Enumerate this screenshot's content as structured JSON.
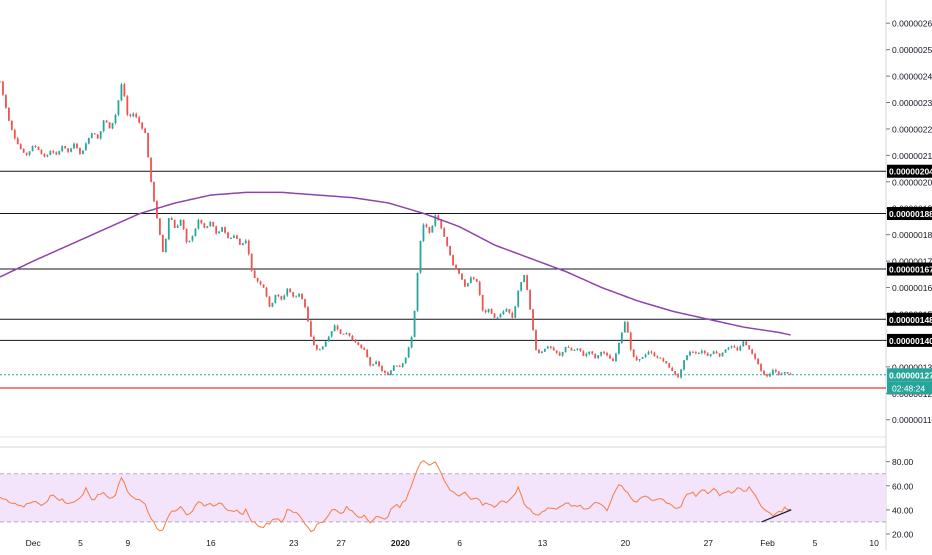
{
  "colors": {
    "up": "#26a69a",
    "down": "#ef5350",
    "ma": "#8e44ad",
    "rsi": "#f57c44",
    "rsi_band": "#f3e3fb",
    "level_line": "#131722",
    "support_line": "#e53935",
    "current_line": "#26a69a",
    "axis_text": "#131722",
    "label_bg": "#000000",
    "label_text": "#ffffff",
    "support_label_bg": "#e53935",
    "current_label_bg": "#26a69a",
    "trendline": "#131722"
  },
  "chart_data": [
    {
      "type": "candlestick",
      "pane": "price",
      "y_unit": "price",
      "ylim": [
        1.08e-06,
        2.65e-06
      ],
      "y_ticks": [
        "0.00000110",
        "0.00000120",
        "0.00000130",
        "0.00000140",
        "0.00000150",
        "0.00000160",
        "0.00000170",
        "0.00000180",
        "0.00000190",
        "0.00000200",
        "0.00000210",
        "0.00000220",
        "0.00000230",
        "0.00000240",
        "0.00000250",
        "0.00000260"
      ],
      "x_ticks": [
        {
          "label": "Dec",
          "day": 0
        },
        {
          "label": "5",
          "day": 4
        },
        {
          "label": "9",
          "day": 8
        },
        {
          "label": "16",
          "day": 15
        },
        {
          "label": "23",
          "day": 22
        },
        {
          "label": "27",
          "day": 26
        },
        {
          "label": "2020",
          "day": 31
        },
        {
          "label": "6",
          "day": 36
        },
        {
          "label": "13",
          "day": 43
        },
        {
          "label": "20",
          "day": 50
        },
        {
          "label": "27",
          "day": 57
        },
        {
          "label": "Feb",
          "day": 62
        },
        {
          "label": "5",
          "day": 66
        },
        {
          "label": "10",
          "day": 71
        }
      ],
      "day_range": [
        -2.8,
        72
      ],
      "close_anchors": [
        [
          -2.8,
          2.38e-06
        ],
        [
          -2.5,
          2.32e-06
        ],
        [
          -2.0,
          2.22e-06
        ],
        [
          -1.5,
          2.16e-06
        ],
        [
          -1.0,
          2.12e-06
        ],
        [
          -0.5,
          2.1e-06
        ],
        [
          0,
          2.14e-06
        ],
        [
          0.5,
          2.12e-06
        ],
        [
          1.0,
          2.09e-06
        ],
        [
          1.5,
          2.12e-06
        ],
        [
          2.0,
          2.1e-06
        ],
        [
          2.5,
          2.14e-06
        ],
        [
          3.0,
          2.11e-06
        ],
        [
          3.5,
          2.15e-06
        ],
        [
          4.0,
          2.1e-06
        ],
        [
          4.5,
          2.15e-06
        ],
        [
          5.0,
          2.19e-06
        ],
        [
          5.5,
          2.16e-06
        ],
        [
          6.0,
          2.24e-06
        ],
        [
          6.5,
          2.2e-06
        ],
        [
          7.0,
          2.26e-06
        ],
        [
          7.5,
          2.38e-06
        ],
        [
          8.0,
          2.24e-06
        ],
        [
          8.5,
          2.26e-06
        ],
        [
          9.0,
          2.22e-06
        ],
        [
          9.5,
          2.18e-06
        ],
        [
          9.8,
          2.05e-06
        ],
        [
          10.0,
          1.98e-06
        ],
        [
          10.5,
          1.85e-06
        ],
        [
          11.0,
          1.72e-06
        ],
        [
          11.5,
          1.88e-06
        ],
        [
          12.0,
          1.82e-06
        ],
        [
          12.5,
          1.86e-06
        ],
        [
          13.0,
          1.76e-06
        ],
        [
          13.5,
          1.8e-06
        ],
        [
          14.0,
          1.86e-06
        ],
        [
          14.5,
          1.82e-06
        ],
        [
          15.0,
          1.85e-06
        ],
        [
          15.5,
          1.8e-06
        ],
        [
          16.0,
          1.83e-06
        ],
        [
          16.5,
          1.78e-06
        ],
        [
          17.0,
          1.8e-06
        ],
        [
          17.5,
          1.76e-06
        ],
        [
          18.0,
          1.78e-06
        ],
        [
          18.5,
          1.65e-06
        ],
        [
          19.0,
          1.62e-06
        ],
        [
          19.5,
          1.6e-06
        ],
        [
          20.0,
          1.52e-06
        ],
        [
          20.5,
          1.58e-06
        ],
        [
          21.0,
          1.55e-06
        ],
        [
          21.5,
          1.6e-06
        ],
        [
          22.0,
          1.56e-06
        ],
        [
          22.5,
          1.58e-06
        ],
        [
          23.0,
          1.52e-06
        ],
        [
          23.5,
          1.4e-06
        ],
        [
          24.0,
          1.36e-06
        ],
        [
          24.5,
          1.38e-06
        ],
        [
          25.0,
          1.42e-06
        ],
        [
          25.5,
          1.46e-06
        ],
        [
          26.0,
          1.42e-06
        ],
        [
          26.5,
          1.43e-06
        ],
        [
          27.0,
          1.4e-06
        ],
        [
          27.5,
          1.38e-06
        ],
        [
          28.0,
          1.36e-06
        ],
        [
          28.5,
          1.3e-06
        ],
        [
          29.0,
          1.32e-06
        ],
        [
          29.5,
          1.28e-06
        ],
        [
          30.0,
          1.27e-06
        ],
        [
          30.5,
          1.31e-06
        ],
        [
          31.0,
          1.3e-06
        ],
        [
          31.5,
          1.34e-06
        ],
        [
          32.0,
          1.42e-06
        ],
        [
          32.3,
          1.56e-06
        ],
        [
          32.6,
          1.75e-06
        ],
        [
          33.0,
          1.85e-06
        ],
        [
          33.5,
          1.8e-06
        ],
        [
          34.0,
          1.88e-06
        ],
        [
          34.5,
          1.82e-06
        ],
        [
          35.0,
          1.75e-06
        ],
        [
          35.5,
          1.68e-06
        ],
        [
          36.0,
          1.65e-06
        ],
        [
          36.5,
          1.6e-06
        ],
        [
          37.0,
          1.64e-06
        ],
        [
          37.5,
          1.62e-06
        ],
        [
          38.0,
          1.5e-06
        ],
        [
          38.5,
          1.52e-06
        ],
        [
          39.0,
          1.48e-06
        ],
        [
          39.5,
          1.5e-06
        ],
        [
          40.0,
          1.52e-06
        ],
        [
          40.5,
          1.48e-06
        ],
        [
          41.0,
          1.6e-06
        ],
        [
          41.5,
          1.65e-06
        ],
        [
          42.0,
          1.5e-06
        ],
        [
          42.5,
          1.35e-06
        ],
        [
          43.0,
          1.36e-06
        ],
        [
          43.5,
          1.38e-06
        ],
        [
          44.0,
          1.36e-06
        ],
        [
          44.5,
          1.34e-06
        ],
        [
          45.0,
          1.38e-06
        ],
        [
          45.5,
          1.36e-06
        ],
        [
          46.0,
          1.37e-06
        ],
        [
          46.5,
          1.34e-06
        ],
        [
          47.0,
          1.36e-06
        ],
        [
          47.5,
          1.33e-06
        ],
        [
          48.0,
          1.36e-06
        ],
        [
          48.5,
          1.34e-06
        ],
        [
          49.0,
          1.32e-06
        ],
        [
          49.5,
          1.4e-06
        ],
        [
          50.0,
          1.48e-06
        ],
        [
          50.5,
          1.35e-06
        ],
        [
          51.0,
          1.32e-06
        ],
        [
          51.5,
          1.34e-06
        ],
        [
          52.0,
          1.36e-06
        ],
        [
          52.5,
          1.34e-06
        ],
        [
          53.0,
          1.33e-06
        ],
        [
          53.5,
          1.31e-06
        ],
        [
          54.0,
          1.28e-06
        ],
        [
          54.5,
          1.26e-06
        ],
        [
          55.0,
          1.33e-06
        ],
        [
          55.5,
          1.36e-06
        ],
        [
          56.0,
          1.35e-06
        ],
        [
          56.5,
          1.36e-06
        ],
        [
          57.0,
          1.34e-06
        ],
        [
          57.5,
          1.36e-06
        ],
        [
          58.0,
          1.34e-06
        ],
        [
          58.5,
          1.37e-06
        ],
        [
          59.0,
          1.38e-06
        ],
        [
          59.5,
          1.36e-06
        ],
        [
          60.0,
          1.4e-06
        ],
        [
          60.5,
          1.36e-06
        ],
        [
          61.0,
          1.33e-06
        ],
        [
          61.5,
          1.28e-06
        ],
        [
          62.0,
          1.26e-06
        ],
        [
          62.5,
          1.29e-06
        ],
        [
          63.0,
          1.27e-06
        ],
        [
          63.5,
          1.28e-06
        ],
        [
          64.0,
          1.27e-06
        ]
      ],
      "moving_average": {
        "anchors": [
          [
            -2.8,
            1.64e-06
          ],
          [
            0,
            1.7e-06
          ],
          [
            3,
            1.76e-06
          ],
          [
            6,
            1.82e-06
          ],
          [
            9,
            1.88e-06
          ],
          [
            12,
            1.92e-06
          ],
          [
            15,
            1.95e-06
          ],
          [
            18,
            1.96e-06
          ],
          [
            21,
            1.96e-06
          ],
          [
            24,
            1.95e-06
          ],
          [
            27,
            1.94e-06
          ],
          [
            30,
            1.92e-06
          ],
          [
            33,
            1.88e-06
          ],
          [
            36,
            1.83e-06
          ],
          [
            39,
            1.76e-06
          ],
          [
            42,
            1.71e-06
          ],
          [
            45,
            1.66e-06
          ],
          [
            48,
            1.6e-06
          ],
          [
            51,
            1.55e-06
          ],
          [
            54,
            1.51e-06
          ],
          [
            57,
            1.48e-06
          ],
          [
            60,
            1.45e-06
          ],
          [
            63,
            1.43e-06
          ],
          [
            64,
            1.42e-06
          ]
        ]
      },
      "horizontal_levels": [
        {
          "value": 2.04e-06,
          "label": "0.00000204"
        },
        {
          "value": 1.88e-06,
          "label": "0.00000188"
        },
        {
          "value": 1.67e-06,
          "label": "0.00000167"
        },
        {
          "value": 1.48e-06,
          "label": "0.00000148"
        },
        {
          "value": 1.4e-06,
          "label": "0.00000140"
        }
      ],
      "support_level": {
        "value": 1.22e-06,
        "label": "0.00000122"
      },
      "current_price": {
        "value": 1.27e-06,
        "label": "0.00000127",
        "countdown": "02:48:24"
      }
    },
    {
      "type": "line",
      "pane": "rsi",
      "ylim": [
        15,
        88
      ],
      "y_ticks": [
        "20.00",
        "40.00",
        "60.00",
        "80.00"
      ],
      "band": [
        30,
        70
      ],
      "anchors": [
        [
          -2.8,
          50
        ],
        [
          -2.0,
          46
        ],
        [
          -1.0,
          42
        ],
        [
          0,
          48
        ],
        [
          0.5,
          44
        ],
        [
          1,
          46
        ],
        [
          1.5,
          52
        ],
        [
          2,
          50
        ],
        [
          2.5,
          48
        ],
        [
          3,
          44
        ],
        [
          3.5,
          48
        ],
        [
          4,
          50
        ],
        [
          4.5,
          58
        ],
        [
          5,
          48
        ],
        [
          5.5,
          52
        ],
        [
          6,
          55
        ],
        [
          6.5,
          50
        ],
        [
          7,
          54
        ],
        [
          7.5,
          68
        ],
        [
          8,
          55
        ],
        [
          8.5,
          50
        ],
        [
          9,
          48
        ],
        [
          9.5,
          44
        ],
        [
          10,
          32
        ],
        [
          10.5,
          25
        ],
        [
          11,
          22
        ],
        [
          11.5,
          38
        ],
        [
          12,
          40
        ],
        [
          12.5,
          44
        ],
        [
          13,
          36
        ],
        [
          13.5,
          40
        ],
        [
          14,
          46
        ],
        [
          14.5,
          42
        ],
        [
          15,
          45
        ],
        [
          15.5,
          44
        ],
        [
          16,
          46
        ],
        [
          16.5,
          38
        ],
        [
          17,
          40
        ],
        [
          17.5,
          36
        ],
        [
          18,
          40
        ],
        [
          18.5,
          30
        ],
        [
          19,
          28
        ],
        [
          19.5,
          26
        ],
        [
          20,
          30
        ],
        [
          20.5,
          34
        ],
        [
          21,
          30
        ],
        [
          21.5,
          40
        ],
        [
          22,
          38
        ],
        [
          22.5,
          36
        ],
        [
          23,
          28
        ],
        [
          23.5,
          22
        ],
        [
          24,
          28
        ],
        [
          24.5,
          30
        ],
        [
          25,
          38
        ],
        [
          25.5,
          40
        ],
        [
          26,
          36
        ],
        [
          26.5,
          42
        ],
        [
          27,
          38
        ],
        [
          27.5,
          34
        ],
        [
          28,
          36
        ],
        [
          28.5,
          30
        ],
        [
          29,
          34
        ],
        [
          29.5,
          32
        ],
        [
          30,
          36
        ],
        [
          30.5,
          44
        ],
        [
          31,
          42
        ],
        [
          31.5,
          50
        ],
        [
          32,
          62
        ],
        [
          32.5,
          75
        ],
        [
          33,
          82
        ],
        [
          33.5,
          78
        ],
        [
          34,
          80
        ],
        [
          34.5,
          70
        ],
        [
          35,
          58
        ],
        [
          35.5,
          54
        ],
        [
          36,
          52
        ],
        [
          36.5,
          56
        ],
        [
          37,
          48
        ],
        [
          37.5,
          50
        ],
        [
          38,
          44
        ],
        [
          38.5,
          46
        ],
        [
          39,
          42
        ],
        [
          39.5,
          48
        ],
        [
          40,
          44
        ],
        [
          40.5,
          52
        ],
        [
          41,
          58
        ],
        [
          41.5,
          44
        ],
        [
          42,
          40
        ],
        [
          42.5,
          36
        ],
        [
          43,
          38
        ],
        [
          43.5,
          42
        ],
        [
          44,
          40
        ],
        [
          44.5,
          44
        ],
        [
          45,
          46
        ],
        [
          45.5,
          42
        ],
        [
          46,
          44
        ],
        [
          46.5,
          40
        ],
        [
          47,
          42
        ],
        [
          47.5,
          48
        ],
        [
          48,
          44
        ],
        [
          48.5,
          40
        ],
        [
          49,
          54
        ],
        [
          49.5,
          62
        ],
        [
          50,
          56
        ],
        [
          50.5,
          48
        ],
        [
          51,
          46
        ],
        [
          51.5,
          52
        ],
        [
          52,
          50
        ],
        [
          52.5,
          48
        ],
        [
          53,
          50
        ],
        [
          53.5,
          46
        ],
        [
          54,
          44
        ],
        [
          54.5,
          40
        ],
        [
          55,
          50
        ],
        [
          55.5,
          54
        ],
        [
          56,
          52
        ],
        [
          56.5,
          56
        ],
        [
          57,
          54
        ],
        [
          57.5,
          58
        ],
        [
          58,
          52
        ],
        [
          58.5,
          56
        ],
        [
          59,
          54
        ],
        [
          59.5,
          60
        ],
        [
          60,
          56
        ],
        [
          60.5,
          58
        ],
        [
          61,
          50
        ],
        [
          61.5,
          44
        ],
        [
          62,
          38
        ],
        [
          62.5,
          36
        ],
        [
          63,
          38
        ],
        [
          63.5,
          42
        ],
        [
          64,
          40
        ]
      ],
      "trendline": [
        [
          61.5,
          30
        ],
        [
          64,
          40
        ]
      ]
    }
  ]
}
